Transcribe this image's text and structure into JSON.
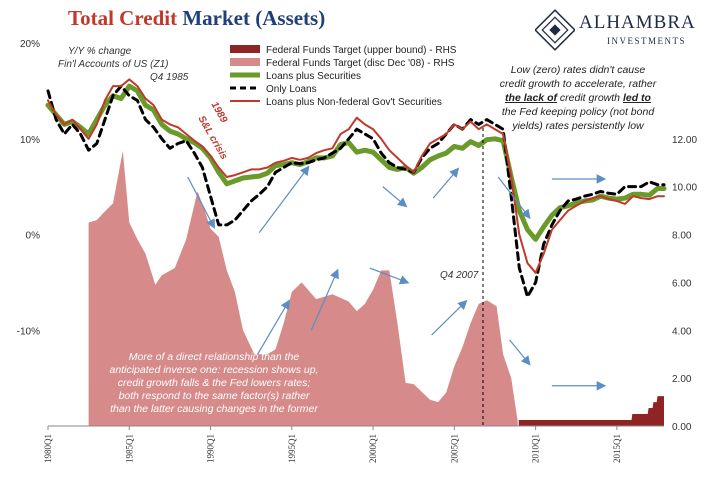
{
  "title": {
    "part1": "Total Credit",
    "part2": "Market",
    "part3": "(Assets)"
  },
  "logo": {
    "brand": "ALHAMBRA",
    "sub": "INVESTMENTS"
  },
  "notes": {
    "units": "Y/Y % change",
    "source": "Fin'l Accounts of US (Z1)",
    "q4_1985": "Q4 1985",
    "snl_1989": "1989",
    "snl_crisis": "S&L crisis",
    "q4_2007": "Q4 2007",
    "right_l1": "Low (zero) rates didn't cause",
    "right_l2": "credit growth to accelerate, rather",
    "right_l3_pre": "",
    "right_l3_a": "the lack of",
    "right_l3_b": "credit growth",
    "right_l3_c": "led to",
    "right_l4": "the Fed keeping policy (not bond",
    "right_l5": "yields) rates persistently low",
    "bottom_l1": "More of a direct relationship than the",
    "bottom_l2": "anticipated inverse one: recession shows up,",
    "bottom_l3": "credit growth falls & the Fed lowers rates;",
    "bottom_l4": "both respond to the same factor(s) rather",
    "bottom_l5": "than the latter causing changes in the former"
  },
  "chart_data": {
    "type": "line",
    "title": "Total Credit Market (Assets)",
    "y_left": {
      "label": "Y/Y % change",
      "range": [
        -20,
        20
      ],
      "ticks": [
        "20%",
        "10%",
        "0%",
        "-10%"
      ]
    },
    "y_right": {
      "label": "RHS",
      "range": [
        0,
        16
      ],
      "ticks": [
        "0.00",
        "2.00",
        "4.00",
        "6.00",
        "8.00",
        "10.00",
        "12.00"
      ]
    },
    "x_ticks": [
      "1980Q1",
      "1985Q1",
      "1990Q1",
      "1995Q1",
      "2000Q1",
      "2005Q1",
      "2010Q1",
      "2015Q1"
    ],
    "x_range": [
      1980.0,
      2017.9
    ],
    "colors": {
      "ff_upper": "#8e2424",
      "ff_target": "#d68a8a",
      "loans_securities": "#6a9a2a",
      "only_loans": "#000000",
      "loans_nonfed": "#c0392b",
      "arrows": "#5b8fc4"
    },
    "series": [
      {
        "name": "Federal Funds Target (upper bound) - RHS",
        "axis": "right",
        "kind": "area",
        "x": [
          2008.96,
          2015.9,
          2015.95,
          2016.0,
          2016.9,
          2016.95,
          2017.2,
          2017.25,
          2017.45,
          2017.5,
          2017.9
        ],
        "y": [
          0.25,
          0.25,
          0.5,
          0.5,
          0.5,
          0.75,
          0.75,
          1.0,
          1.0,
          1.25,
          1.25
        ]
      },
      {
        "name": "Federal Funds Target (disc Dec '08) - RHS",
        "axis": "right",
        "kind": "area",
        "x": [
          1982.5,
          1983.0,
          1983.4,
          1984.0,
          1984.6,
          1985.0,
          1985.5,
          1986.0,
          1986.6,
          1987.0,
          1987.8,
          1988.5,
          1989.2,
          1989.6,
          1990.0,
          1990.5,
          1991.0,
          1991.5,
          1992.0,
          1992.7,
          1993.5,
          1994.0,
          1994.5,
          1995.0,
          1995.6,
          1996.5,
          1997.5,
          1998.5,
          1999.0,
          1999.5,
          2000.0,
          2000.5,
          2001.0,
          2001.5,
          2002.0,
          2002.5,
          2003.5,
          2004.0,
          2004.5,
          2005.0,
          2005.5,
          2006.0,
          2006.5,
          2007.0,
          2007.6,
          2008.0,
          2008.5,
          2008.9
        ],
        "y": [
          8.5,
          8.6,
          8.9,
          9.3,
          11.5,
          8.5,
          7.8,
          7.2,
          5.9,
          6.3,
          6.6,
          7.8,
          9.8,
          9.1,
          8.25,
          7.9,
          6.5,
          5.6,
          4.0,
          3.0,
          3.0,
          3.2,
          4.3,
          5.6,
          6.0,
          5.3,
          5.5,
          5.2,
          4.8,
          5.1,
          5.7,
          6.5,
          6.5,
          4.3,
          1.8,
          1.75,
          1.1,
          1.0,
          1.4,
          2.5,
          3.3,
          4.3,
          5.1,
          5.25,
          5.0,
          3.0,
          2.0,
          0.2
        ]
      },
      {
        "name": "Loans plus Securities",
        "axis": "left",
        "kind": "line",
        "x": [
          1980.0,
          1980.5,
          1981.0,
          1981.5,
          1982.0,
          1982.5,
          1983.0,
          1983.5,
          1984.0,
          1984.5,
          1985.0,
          1985.5,
          1986.0,
          1986.5,
          1987.0,
          1987.5,
          1988.0,
          1988.5,
          1989.0,
          1989.5,
          1990.0,
          1990.5,
          1991.0,
          1991.5,
          1992.0,
          1992.5,
          1993.0,
          1993.5,
          1994.0,
          1994.5,
          1995.0,
          1995.5,
          1996.0,
          1996.5,
          1997.0,
          1997.5,
          1998.0,
          1998.5,
          1999.0,
          1999.5,
          2000.0,
          2000.5,
          2001.0,
          2001.5,
          2002.0,
          2002.5,
          2003.0,
          2003.5,
          2004.0,
          2004.5,
          2005.0,
          2005.5,
          2006.0,
          2006.5,
          2007.0,
          2007.5,
          2008.0,
          2008.5,
          2009.0,
          2009.5,
          2010.0,
          2010.5,
          2011.0,
          2011.5,
          2012.0,
          2012.5,
          2013.0,
          2013.5,
          2014.0,
          2014.5,
          2015.0,
          2015.5,
          2016.0,
          2016.5,
          2017.0,
          2017.5,
          2017.9
        ],
        "y": [
          13.5,
          12.5,
          11.5,
          11.8,
          11.2,
          10.5,
          12.0,
          13.5,
          14.5,
          14.2,
          15.5,
          15.0,
          13.5,
          13.0,
          11.5,
          10.8,
          10.5,
          10.0,
          9.6,
          9.0,
          8.0,
          6.5,
          5.3,
          5.6,
          5.9,
          6.0,
          6.1,
          6.4,
          7.2,
          7.3,
          7.5,
          7.3,
          7.6,
          8.0,
          8.0,
          8.2,
          9.4,
          9.6,
          8.6,
          8.8,
          8.6,
          7.8,
          7.0,
          6.8,
          7.0,
          6.4,
          7.0,
          7.8,
          8.2,
          8.5,
          9.2,
          9.0,
          9.7,
          9.3,
          9.9,
          10.0,
          9.8,
          6.0,
          2.5,
          0.5,
          -0.5,
          0.8,
          2.0,
          2.8,
          3.0,
          3.3,
          3.5,
          3.6,
          4.0,
          3.8,
          3.7,
          3.8,
          4.2,
          4.2,
          4.1,
          4.8,
          4.8
        ]
      },
      {
        "name": "Only Loans",
        "axis": "left",
        "kind": "line",
        "dashed": true,
        "x": [
          1980.0,
          1980.5,
          1981.0,
          1981.5,
          1982.0,
          1982.5,
          1983.0,
          1983.5,
          1984.0,
          1984.5,
          1985.0,
          1985.5,
          1986.0,
          1986.5,
          1987.0,
          1987.5,
          1988.0,
          1988.5,
          1989.0,
          1989.5,
          1990.0,
          1990.5,
          1991.0,
          1991.5,
          1992.0,
          1992.5,
          1993.0,
          1993.5,
          1994.0,
          1994.5,
          1995.0,
          1995.5,
          1996.0,
          1996.5,
          1997.0,
          1997.5,
          1998.0,
          1998.5,
          1999.0,
          1999.5,
          2000.0,
          2000.5,
          2001.0,
          2001.5,
          2002.0,
          2002.5,
          2003.0,
          2003.5,
          2004.0,
          2004.5,
          2005.0,
          2005.5,
          2006.0,
          2006.5,
          2007.0,
          2007.5,
          2008.0,
          2008.5,
          2009.0,
          2009.5,
          2010.0,
          2010.5,
          2011.0,
          2011.5,
          2012.0,
          2012.5,
          2013.0,
          2013.5,
          2014.0,
          2014.5,
          2015.0,
          2015.5,
          2016.0,
          2016.5,
          2017.0,
          2017.5,
          2017.9
        ],
        "y": [
          15.0,
          12.0,
          10.5,
          11.5,
          10.5,
          8.8,
          9.5,
          12.0,
          14.5,
          15.5,
          14.5,
          14.0,
          12.0,
          11.2,
          10.0,
          9.0,
          9.5,
          9.8,
          8.5,
          7.0,
          4.0,
          1.0,
          1.0,
          1.5,
          2.5,
          3.5,
          4.2,
          5.0,
          6.5,
          7.0,
          7.5,
          7.4,
          7.5,
          7.8,
          8.0,
          8.5,
          9.0,
          10.0,
          11.0,
          10.5,
          10.0,
          8.5,
          7.5,
          7.0,
          6.8,
          6.5,
          8.0,
          9.0,
          9.5,
          10.5,
          11.5,
          11.0,
          12.0,
          11.5,
          12.0,
          11.5,
          11.0,
          4.0,
          -3.5,
          -6.5,
          -5.0,
          -1.0,
          1.0,
          2.5,
          3.5,
          3.7,
          4.0,
          4.2,
          4.5,
          4.3,
          4.2,
          5.0,
          5.0,
          5.0,
          5.5,
          5.2,
          5.2
        ]
      },
      {
        "name": "Loans plus Non-federal Gov't Securities",
        "axis": "left",
        "kind": "line",
        "x": [
          1980.0,
          1980.5,
          1981.0,
          1981.5,
          1982.0,
          1982.5,
          1983.0,
          1983.5,
          1984.0,
          1984.5,
          1985.0,
          1985.5,
          1986.0,
          1986.5,
          1987.0,
          1987.5,
          1988.0,
          1988.5,
          1989.0,
          1989.5,
          1990.0,
          1990.5,
          1991.0,
          1991.5,
          1992.0,
          1992.5,
          1993.0,
          1993.5,
          1994.0,
          1994.5,
          1995.0,
          1995.5,
          1996.0,
          1996.5,
          1997.0,
          1997.5,
          1998.0,
          1998.5,
          1999.0,
          1999.5,
          2000.0,
          2000.5,
          2001.0,
          2001.5,
          2002.0,
          2002.5,
          2003.0,
          2003.5,
          2004.0,
          2004.5,
          2005.0,
          2005.5,
          2006.0,
          2006.5,
          2007.0,
          2007.5,
          2008.0,
          2008.5,
          2009.0,
          2009.5,
          2010.0,
          2010.5,
          2011.0,
          2011.5,
          2012.0,
          2012.5,
          2013.0,
          2013.5,
          2014.0,
          2014.5,
          2015.0,
          2015.5,
          2016.0,
          2016.5,
          2017.0,
          2017.5,
          2017.9
        ],
        "y": [
          14.0,
          12.5,
          11.5,
          12.0,
          11.0,
          10.0,
          11.5,
          14.0,
          15.5,
          15.5,
          16.2,
          15.5,
          14.2,
          13.5,
          12.0,
          11.5,
          11.2,
          10.5,
          9.8,
          9.2,
          8.2,
          7.0,
          6.0,
          6.2,
          6.5,
          6.8,
          6.8,
          7.0,
          7.5,
          7.7,
          8.0,
          7.8,
          8.0,
          8.5,
          8.8,
          9.0,
          10.5,
          11.0,
          12.2,
          11.5,
          11.0,
          10.0,
          8.8,
          8.0,
          7.2,
          6.5,
          8.2,
          9.5,
          10.0,
          10.5,
          11.5,
          11.0,
          11.8,
          11.0,
          11.5,
          11.0,
          10.5,
          6.0,
          0.0,
          -3.0,
          -4.0,
          -2.0,
          0.5,
          1.5,
          2.5,
          3.0,
          3.5,
          3.8,
          4.0,
          3.7,
          3.5,
          3.2,
          4.0,
          3.8,
          3.7,
          4.0,
          4.0
        ]
      }
    ],
    "legend_position": "top-center",
    "grid": false
  }
}
